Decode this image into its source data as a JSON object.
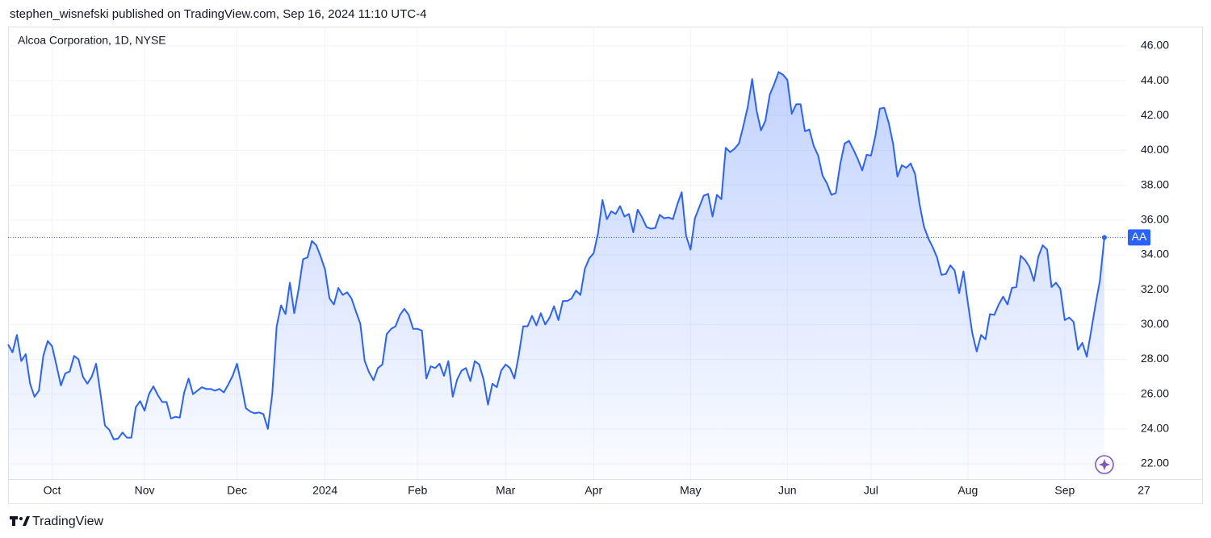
{
  "header": {
    "byline": "stephen_wisnefski published on TradingView.com, Sep 16, 2024 11:10 UTC-4"
  },
  "footer": {
    "brand": "TradingView"
  },
  "chart_data": {
    "type": "line",
    "title": "Alcoa Corporation, 1D, NYSE",
    "symbol": "AA",
    "categories": [
      null,
      null,
      null,
      null,
      null,
      null,
      null,
      null,
      null,
      null,
      "Oct",
      null,
      null,
      null,
      null,
      null,
      null,
      null,
      null,
      null,
      null,
      null,
      null,
      null,
      null,
      null,
      null,
      null,
      null,
      null,
      null,
      "Nov",
      null,
      null,
      null,
      null,
      null,
      null,
      null,
      null,
      null,
      null,
      null,
      null,
      null,
      null,
      null,
      null,
      null,
      null,
      null,
      null,
      "Dec",
      null,
      null,
      null,
      null,
      null,
      null,
      null,
      null,
      null,
      null,
      null,
      null,
      null,
      null,
      null,
      null,
      null,
      null,
      null,
      "2024",
      null,
      null,
      null,
      null,
      null,
      null,
      null,
      null,
      null,
      null,
      null,
      null,
      null,
      null,
      null,
      null,
      null,
      null,
      null,
      null,
      "Feb",
      null,
      null,
      null,
      null,
      null,
      null,
      null,
      null,
      null,
      null,
      null,
      null,
      null,
      null,
      null,
      null,
      null,
      null,
      null,
      "Mar",
      null,
      null,
      null,
      null,
      null,
      null,
      null,
      null,
      null,
      null,
      null,
      null,
      null,
      null,
      null,
      null,
      null,
      null,
      null,
      "Apr",
      null,
      null,
      null,
      null,
      null,
      null,
      null,
      null,
      null,
      null,
      null,
      null,
      null,
      null,
      null,
      null,
      null,
      null,
      null,
      null,
      null,
      "May",
      null,
      null,
      null,
      null,
      null,
      null,
      null,
      null,
      null,
      null,
      null,
      null,
      null,
      null,
      null,
      null,
      null,
      null,
      null,
      null,
      null,
      "Jun",
      null,
      null,
      null,
      null,
      null,
      null,
      null,
      null,
      null,
      null,
      null,
      null,
      null,
      null,
      null,
      null,
      null,
      null,
      "Jul",
      null,
      null,
      null,
      null,
      null,
      null,
      null,
      null,
      null,
      null,
      null,
      null,
      null,
      null,
      null,
      null,
      null,
      null,
      null,
      null,
      null,
      "Aug",
      null,
      null,
      null,
      null,
      null,
      null,
      null,
      null,
      null,
      null,
      null,
      null,
      null,
      null,
      null,
      null,
      null,
      null,
      null,
      null,
      null,
      "Sep",
      null,
      null,
      null,
      null,
      null,
      null,
      null,
      null,
      null,
      null,
      null,
      null,
      null,
      null,
      null,
      null,
      null,
      "27"
    ],
    "series": [
      {
        "name": "AA",
        "color": "#2962ff",
        "values": [
          28.85,
          28.4,
          29.4,
          27.9,
          28.3,
          26.6,
          25.85,
          26.2,
          28.2,
          29.05,
          28.75,
          27.65,
          26.5,
          27.2,
          27.3,
          28.2,
          28.0,
          27.0,
          26.6,
          27.0,
          27.75,
          26.0,
          24.2,
          23.95,
          23.4,
          23.45,
          23.8,
          23.5,
          23.5,
          25.25,
          25.6,
          25.05,
          26.0,
          26.45,
          25.95,
          25.55,
          25.55,
          24.6,
          24.7,
          24.65,
          26.1,
          26.9,
          26.0,
          26.2,
          26.4,
          26.3,
          26.3,
          26.2,
          26.3,
          26.1,
          26.55,
          27.05,
          27.75,
          26.55,
          25.2,
          25.0,
          24.9,
          24.95,
          24.85,
          24.0,
          26.0,
          29.9,
          31.1,
          30.6,
          32.4,
          30.65,
          32.05,
          33.75,
          33.85,
          34.8,
          34.55,
          33.9,
          33.15,
          31.5,
          31.15,
          32.1,
          31.7,
          31.85,
          31.5,
          30.75,
          30.05,
          27.9,
          27.25,
          26.8,
          27.5,
          27.7,
          29.45,
          29.75,
          29.9,
          30.55,
          30.9,
          30.55,
          29.75,
          29.75,
          29.65,
          26.9,
          27.6,
          27.5,
          27.75,
          27.05,
          27.9,
          25.85,
          26.85,
          27.35,
          27.5,
          26.75,
          27.9,
          27.7,
          26.85,
          25.4,
          26.6,
          26.4,
          27.35,
          27.7,
          27.5,
          26.9,
          28.25,
          29.9,
          29.9,
          30.5,
          29.95,
          30.65,
          30.0,
          30.4,
          31.05,
          30.25,
          31.35,
          31.35,
          31.5,
          31.95,
          31.7,
          33.2,
          33.8,
          34.1,
          35.25,
          37.15,
          36.05,
          36.5,
          36.35,
          36.8,
          36.2,
          36.35,
          35.3,
          36.6,
          36.15,
          35.6,
          35.5,
          35.55,
          36.3,
          36.1,
          36.15,
          36.05,
          36.9,
          37.6,
          35.1,
          34.3,
          36.1,
          36.75,
          37.4,
          37.5,
          36.2,
          37.45,
          37.2,
          40.15,
          39.9,
          40.1,
          40.4,
          41.4,
          42.5,
          44.1,
          42.3,
          41.15,
          41.7,
          43.2,
          43.8,
          44.5,
          44.35,
          44.05,
          42.1,
          42.65,
          42.65,
          41.1,
          41.2,
          40.25,
          39.7,
          38.55,
          38.1,
          37.45,
          37.55,
          39.2,
          40.4,
          40.55,
          40.05,
          39.5,
          38.85,
          39.75,
          39.7,
          40.85,
          42.4,
          42.45,
          41.6,
          40.4,
          38.5,
          39.15,
          39.0,
          39.25,
          38.65,
          36.95,
          35.65,
          34.95,
          34.45,
          33.85,
          32.85,
          32.9,
          33.4,
          33.1,
          31.8,
          33.05,
          31.25,
          29.5,
          28.45,
          29.4,
          29.15,
          30.6,
          30.55,
          31.15,
          31.6,
          31.15,
          32.1,
          32.15,
          33.95,
          33.7,
          33.3,
          32.5,
          33.9,
          34.55,
          34.3,
          32.15,
          32.4,
          32.05,
          30.25,
          30.4,
          30.15,
          28.55,
          28.95,
          28.15,
          29.65,
          31.15,
          32.55,
          35.0,
          null,
          null,
          null,
          null,
          null,
          null,
          null,
          null,
          null
        ]
      }
    ],
    "ylim": [
      21.12,
      47.11
    ],
    "yticks": [
      {
        "value": 22,
        "label": "22.00"
      },
      {
        "value": 24,
        "label": "24.00"
      },
      {
        "value": 26,
        "label": "26.00"
      },
      {
        "value": 28,
        "label": "28.00"
      },
      {
        "value": 30,
        "label": "30.00"
      },
      {
        "value": 32,
        "label": "32.00"
      },
      {
        "value": 34,
        "label": "34.00"
      },
      {
        "value": 36,
        "label": "36.00"
      },
      {
        "value": 38,
        "label": "38.00"
      },
      {
        "value": 40,
        "label": "40.00"
      },
      {
        "value": 42,
        "label": "42.00"
      },
      {
        "value": 44,
        "label": "44.00"
      },
      {
        "value": 46,
        "label": "46.00"
      }
    ],
    "grid": true,
    "area_fill": true,
    "last_value_line": true
  }
}
